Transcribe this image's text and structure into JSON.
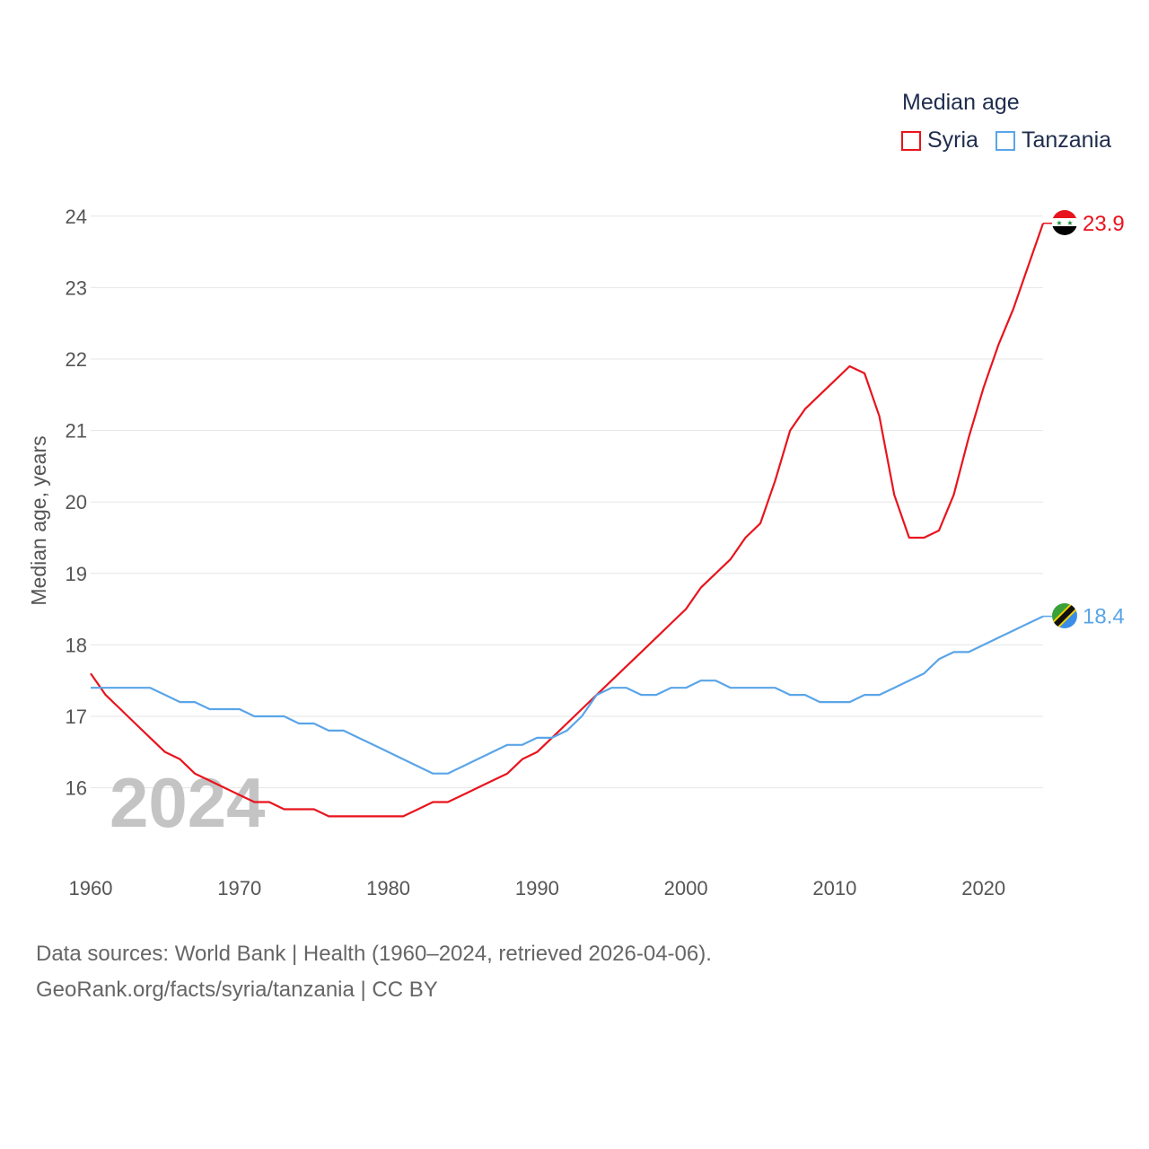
{
  "legend": {
    "title": "Median age"
  },
  "source": {
    "line1": "Data sources: World Bank | Health (1960–2024, retrieved 2026-04-06).",
    "line2": "GeoRank.org/facts/syria/tanzania | CC BY"
  },
  "chart_data": {
    "type": "line",
    "title": "Median age",
    "xlabel": "",
    "ylabel": "Median age, years",
    "watermark": "2024",
    "xlim": [
      1960,
      2024
    ],
    "ylim": [
      15.0,
      24.1
    ],
    "xticks": [
      1960,
      1970,
      1980,
      1990,
      2000,
      2010,
      2020
    ],
    "yticks": [
      16,
      17,
      18,
      19,
      20,
      21,
      22,
      23,
      24
    ],
    "grid": true,
    "legend_position": "top-right",
    "x": [
      1960,
      1961,
      1962,
      1963,
      1964,
      1965,
      1966,
      1967,
      1968,
      1969,
      1970,
      1971,
      1972,
      1973,
      1974,
      1975,
      1976,
      1977,
      1978,
      1979,
      1980,
      1981,
      1982,
      1983,
      1984,
      1985,
      1986,
      1987,
      1988,
      1989,
      1990,
      1991,
      1992,
      1993,
      1994,
      1995,
      1996,
      1997,
      1998,
      1999,
      2000,
      2001,
      2002,
      2003,
      2004,
      2005,
      2006,
      2007,
      2008,
      2009,
      2010,
      2011,
      2012,
      2013,
      2014,
      2015,
      2016,
      2017,
      2018,
      2019,
      2020,
      2021,
      2022,
      2023,
      2024
    ],
    "series": [
      {
        "name": "Syria",
        "color": "#e8141d",
        "end_label": "23.9",
        "flag": "syria-flag",
        "values": [
          17.6,
          17.3,
          17.1,
          16.9,
          16.7,
          16.5,
          16.4,
          16.2,
          16.1,
          16.0,
          15.9,
          15.8,
          15.8,
          15.7,
          15.7,
          15.7,
          15.6,
          15.6,
          15.6,
          15.6,
          15.6,
          15.6,
          15.7,
          15.8,
          15.8,
          15.9,
          16.0,
          16.1,
          16.2,
          16.4,
          16.5,
          16.7,
          16.9,
          17.1,
          17.3,
          17.5,
          17.7,
          17.9,
          18.1,
          18.3,
          18.5,
          18.8,
          19.0,
          19.2,
          19.5,
          19.7,
          20.3,
          21.0,
          21.3,
          21.5,
          21.7,
          21.9,
          21.8,
          21.2,
          20.1,
          19.5,
          19.5,
          19.6,
          20.1,
          20.9,
          21.6,
          22.2,
          22.7,
          23.3,
          23.9
        ]
      },
      {
        "name": "Tanzania",
        "color": "#5aa5e8",
        "end_label": "18.4",
        "flag": "tanzania-flag",
        "values": [
          17.4,
          17.4,
          17.4,
          17.4,
          17.4,
          17.3,
          17.2,
          17.2,
          17.1,
          17.1,
          17.1,
          17.0,
          17.0,
          17.0,
          16.9,
          16.9,
          16.8,
          16.8,
          16.7,
          16.6,
          16.5,
          16.4,
          16.3,
          16.2,
          16.2,
          16.3,
          16.4,
          16.5,
          16.6,
          16.6,
          16.7,
          16.7,
          16.8,
          17.0,
          17.3,
          17.4,
          17.4,
          17.3,
          17.3,
          17.4,
          17.4,
          17.5,
          17.5,
          17.4,
          17.4,
          17.4,
          17.4,
          17.3,
          17.3,
          17.2,
          17.2,
          17.2,
          17.3,
          17.3,
          17.4,
          17.5,
          17.6,
          17.8,
          17.9,
          17.9,
          18.0,
          18.1,
          18.2,
          18.3,
          18.4
        ]
      }
    ]
  }
}
